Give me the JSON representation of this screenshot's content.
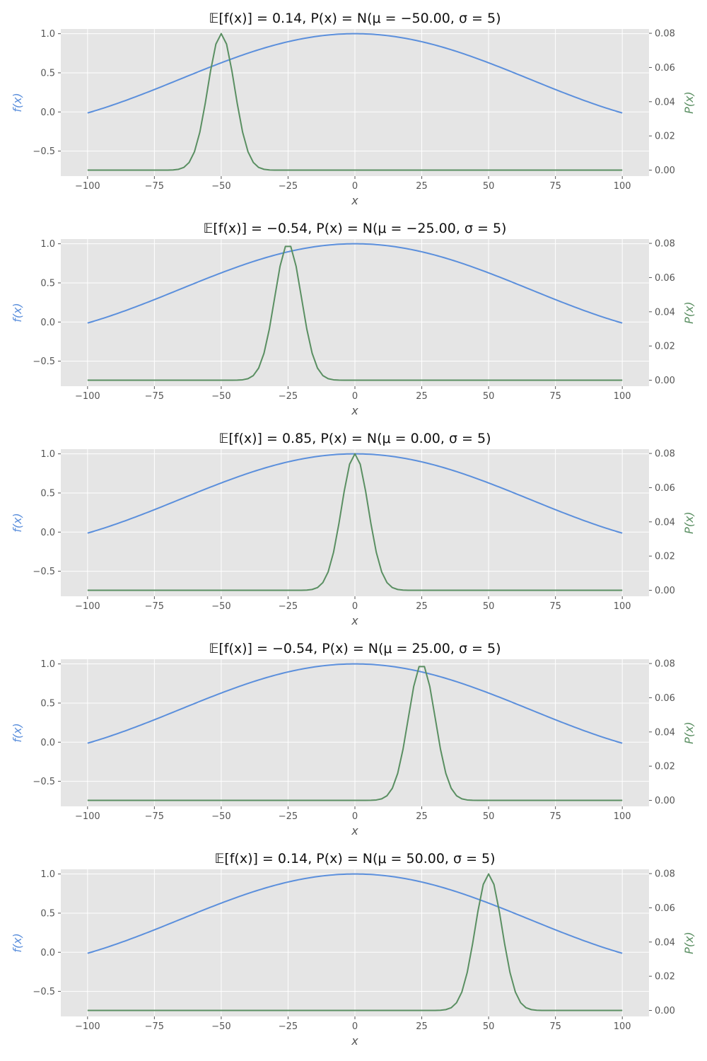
{
  "figure": {
    "style": "ggplot",
    "background_color": "#e5e5e5",
    "grid_color": "#ffffff",
    "f_color": "#5b8fdc",
    "p_color": "#5a8f62"
  },
  "chart_data": [
    {
      "type": "line",
      "title": "𝔼[f(x)] = 0.14, P(x) = N(μ = −50.00, σ = 5)",
      "xlabel": "x",
      "ylabel_left": "f(x)",
      "ylabel_right": "P(x)",
      "mu": -50,
      "sigma": 5,
      "xlim": [
        -110,
        110
      ],
      "ylim_left": [
        -0.82,
        1.06
      ],
      "ylim_right": [
        -0.0035,
        0.0825
      ],
      "xticks": [
        -100,
        -75,
        -50,
        -25,
        0,
        25,
        50,
        75,
        100
      ],
      "xtick_labels": [
        "−100",
        "−75",
        "−50",
        "−25",
        "0",
        "25",
        "50",
        "75",
        "100"
      ],
      "yticks_left": [
        -0.5,
        0.0,
        0.5,
        1.0
      ],
      "ytick_labels_left": [
        "−0.5",
        "0.0",
        "0.5",
        "1.0"
      ],
      "yticks_right": [
        0.0,
        0.02,
        0.04,
        0.06,
        0.08
      ],
      "ytick_labels_right": [
        "0.00",
        "0.02",
        "0.04",
        "0.06",
        "0.08"
      ],
      "grid": true,
      "series": [
        {
          "name": "f(x)",
          "axis": "left",
          "function": "sinc(x / 10π)",
          "x_range": [
            -100,
            100
          ]
        },
        {
          "name": "P(x)",
          "axis": "right",
          "function": "normal pdf(μ, σ)",
          "x_range": [
            -100,
            100
          ]
        }
      ]
    },
    {
      "type": "line",
      "title": "𝔼[f(x)] = −0.54, P(x) = N(μ = −25.00, σ = 5)",
      "xlabel": "x",
      "ylabel_left": "f(x)",
      "ylabel_right": "P(x)",
      "mu": -25,
      "sigma": 5,
      "xlim": [
        -110,
        110
      ],
      "ylim_left": [
        -0.82,
        1.06
      ],
      "ylim_right": [
        -0.0035,
        0.0825
      ],
      "xticks": [
        -100,
        -75,
        -50,
        -25,
        0,
        25,
        50,
        75,
        100
      ],
      "xtick_labels": [
        "−100",
        "−75",
        "−50",
        "−25",
        "0",
        "25",
        "50",
        "75",
        "100"
      ],
      "yticks_left": [
        -0.5,
        0.0,
        0.5,
        1.0
      ],
      "ytick_labels_left": [
        "−0.5",
        "0.0",
        "0.5",
        "1.0"
      ],
      "yticks_right": [
        0.0,
        0.02,
        0.04,
        0.06,
        0.08
      ],
      "ytick_labels_right": [
        "0.00",
        "0.02",
        "0.04",
        "0.06",
        "0.08"
      ],
      "grid": true,
      "series": [
        {
          "name": "f(x)",
          "axis": "left",
          "function": "sinc(x / 10π)",
          "x_range": [
            -100,
            100
          ]
        },
        {
          "name": "P(x)",
          "axis": "right",
          "function": "normal pdf(μ, σ)",
          "x_range": [
            -100,
            100
          ]
        }
      ]
    },
    {
      "type": "line",
      "title": "𝔼[f(x)] = 0.85, P(x) = N(μ = 0.00, σ = 5)",
      "xlabel": "x",
      "ylabel_left": "f(x)",
      "ylabel_right": "P(x)",
      "mu": 0,
      "sigma": 5,
      "xlim": [
        -110,
        110
      ],
      "ylim_left": [
        -0.82,
        1.06
      ],
      "ylim_right": [
        -0.0035,
        0.0825
      ],
      "xticks": [
        -100,
        -75,
        -50,
        -25,
        0,
        25,
        50,
        75,
        100
      ],
      "xtick_labels": [
        "−100",
        "−75",
        "−50",
        "−25",
        "0",
        "25",
        "50",
        "75",
        "100"
      ],
      "yticks_left": [
        -0.5,
        0.0,
        0.5,
        1.0
      ],
      "ytick_labels_left": [
        "−0.5",
        "0.0",
        "0.5",
        "1.0"
      ],
      "yticks_right": [
        0.0,
        0.02,
        0.04,
        0.06,
        0.08
      ],
      "ytick_labels_right": [
        "0.00",
        "0.02",
        "0.04",
        "0.06",
        "0.08"
      ],
      "grid": true,
      "series": [
        {
          "name": "f(x)",
          "axis": "left",
          "function": "sinc(x / 10π)",
          "x_range": [
            -100,
            100
          ]
        },
        {
          "name": "P(x)",
          "axis": "right",
          "function": "normal pdf(μ, σ)",
          "x_range": [
            -100,
            100
          ]
        }
      ]
    },
    {
      "type": "line",
      "title": "𝔼[f(x)] = −0.54, P(x) = N(μ = 25.00, σ = 5)",
      "xlabel": "x",
      "ylabel_left": "f(x)",
      "ylabel_right": "P(x)",
      "mu": 25,
      "sigma": 5,
      "xlim": [
        -110,
        110
      ],
      "ylim_left": [
        -0.82,
        1.06
      ],
      "ylim_right": [
        -0.0035,
        0.0825
      ],
      "xticks": [
        -100,
        -75,
        -50,
        -25,
        0,
        25,
        50,
        75,
        100
      ],
      "xtick_labels": [
        "−100",
        "−75",
        "−50",
        "−25",
        "0",
        "25",
        "50",
        "75",
        "100"
      ],
      "yticks_left": [
        -0.5,
        0.0,
        0.5,
        1.0
      ],
      "ytick_labels_left": [
        "−0.5",
        "0.0",
        "0.5",
        "1.0"
      ],
      "yticks_right": [
        0.0,
        0.02,
        0.04,
        0.06,
        0.08
      ],
      "ytick_labels_right": [
        "0.00",
        "0.02",
        "0.04",
        "0.06",
        "0.08"
      ],
      "grid": true,
      "series": [
        {
          "name": "f(x)",
          "axis": "left",
          "function": "sinc(x / 10π)",
          "x_range": [
            -100,
            100
          ]
        },
        {
          "name": "P(x)",
          "axis": "right",
          "function": "normal pdf(μ, σ)",
          "x_range": [
            -100,
            100
          ]
        }
      ]
    },
    {
      "type": "line",
      "title": "𝔼[f(x)] = 0.14, P(x) = N(μ = 50.00, σ = 5)",
      "xlabel": "x",
      "ylabel_left": "f(x)",
      "ylabel_right": "P(x)",
      "mu": 50,
      "sigma": 5,
      "xlim": [
        -110,
        110
      ],
      "ylim_left": [
        -0.82,
        1.06
      ],
      "ylim_right": [
        -0.0035,
        0.0825
      ],
      "xticks": [
        -100,
        -75,
        -50,
        -25,
        0,
        25,
        50,
        75,
        100
      ],
      "xtick_labels": [
        "−100",
        "−75",
        "−50",
        "−25",
        "0",
        "25",
        "50",
        "75",
        "100"
      ],
      "yticks_left": [
        -0.5,
        0.0,
        0.5,
        1.0
      ],
      "ytick_labels_left": [
        "−0.5",
        "0.0",
        "0.5",
        "1.0"
      ],
      "yticks_right": [
        0.0,
        0.02,
        0.04,
        0.06,
        0.08
      ],
      "ytick_labels_right": [
        "0.00",
        "0.02",
        "0.04",
        "0.06",
        "0.08"
      ],
      "grid": true,
      "series": [
        {
          "name": "f(x)",
          "axis": "left",
          "function": "sinc(x / 10π)",
          "x_range": [
            -100,
            100
          ]
        },
        {
          "name": "P(x)",
          "axis": "right",
          "function": "normal pdf(μ, σ)",
          "x_range": [
            -100,
            100
          ]
        }
      ]
    }
  ]
}
